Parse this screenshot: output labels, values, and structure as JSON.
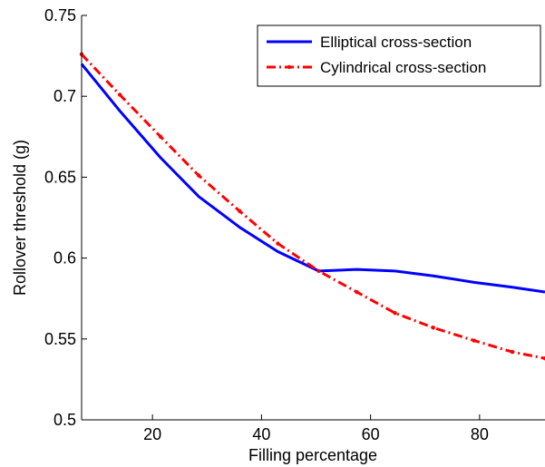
{
  "chart_data": {
    "type": "line",
    "title": "",
    "xlabel": "Filling percentage",
    "ylabel": "Rollover threshold (g)",
    "xlim": [
      7,
      92
    ],
    "ylim": [
      0.5,
      0.75
    ],
    "x_ticks": [
      20,
      40,
      60,
      80
    ],
    "y_ticks": [
      0.5,
      0.55,
      0.6,
      0.65,
      0.7,
      0.75
    ],
    "x_tick_labels": [
      "20",
      "40",
      "60",
      "80"
    ],
    "y_tick_labels": [
      "0.5",
      "0.55",
      "0.6",
      "0.65",
      "0.7",
      "0.75"
    ],
    "grid": false,
    "legend_position": "top-right",
    "series": [
      {
        "name": "Elliptical cross-section",
        "color": "#0000ff",
        "line_style": "solid",
        "marker": "none",
        "x": [
          7,
          14,
          21.5,
          28.5,
          36,
          43,
          50.5,
          57.5,
          64.5,
          71.5,
          79,
          86,
          92
        ],
        "y": [
          0.72,
          0.691,
          0.662,
          0.638,
          0.619,
          0.604,
          0.592,
          0.593,
          0.592,
          0.589,
          0.585,
          0.582,
          0.579
        ]
      },
      {
        "name": "Cylindrical cross-section",
        "color": "#ff0000",
        "line_style": "dash-dot",
        "marker": "point",
        "x": [
          7,
          14,
          21.5,
          28.5,
          36,
          43,
          50.5,
          57.5,
          64.5,
          71.5,
          79,
          86,
          92
        ],
        "y": [
          0.726,
          0.701,
          0.675,
          0.651,
          0.629,
          0.609,
          0.592,
          0.579,
          0.566,
          0.557,
          0.549,
          0.542,
          0.538
        ]
      }
    ]
  }
}
